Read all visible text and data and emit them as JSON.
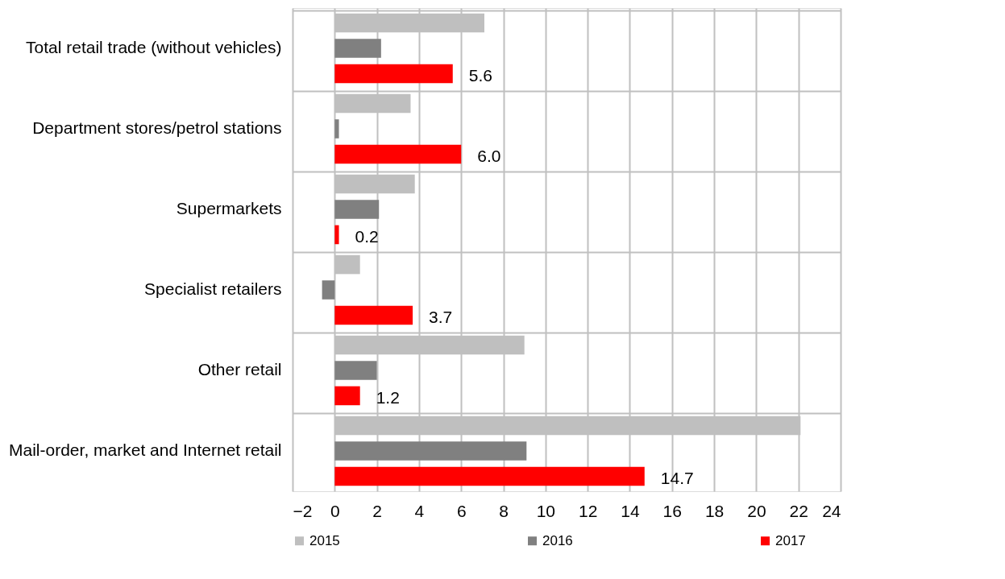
{
  "chart_data": {
    "type": "bar",
    "orientation": "horizontal",
    "categories": [
      "Total retail trade (without vehicles)",
      "Department stores/petrol stations",
      "Supermarkets",
      "Specialist retailers",
      "Other retail",
      "Mail-order, market and Internet retail"
    ],
    "series": [
      {
        "name": "2015",
        "color": "#bfbfbf",
        "values": [
          7.1,
          3.6,
          3.8,
          1.2,
          9.0,
          22.1
        ]
      },
      {
        "name": "2016",
        "color": "#808080",
        "values": [
          2.2,
          0.2,
          2.1,
          -0.6,
          2.0,
          9.1
        ]
      },
      {
        "name": "2017",
        "color": "#ff0000",
        "values": [
          5.6,
          6.0,
          0.2,
          3.7,
          1.2,
          14.7
        ],
        "value_labels": [
          "5.6",
          "6.0",
          "0.2",
          "3.7",
          "1.2",
          "14.7"
        ]
      }
    ],
    "xlim": [
      -2,
      24
    ],
    "xticks": [
      -2,
      0,
      2,
      4,
      6,
      8,
      10,
      12,
      14,
      16,
      18,
      20,
      22,
      24
    ],
    "grid": true,
    "legend": "bottom"
  }
}
